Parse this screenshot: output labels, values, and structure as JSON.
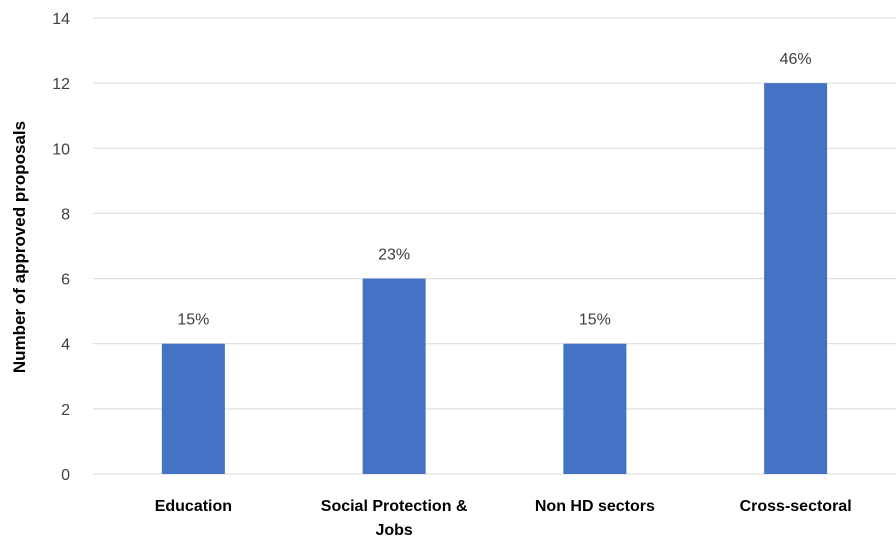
{
  "chart_data": {
    "type": "bar",
    "categories": [
      "Education",
      "Social Protection & Jobs",
      "Non HD sectors",
      "Cross-sectoral"
    ],
    "category_lines": [
      [
        "Education"
      ],
      [
        "Social Protection &",
        "Jobs"
      ],
      [
        "Non HD sectors"
      ],
      [
        "Cross-sectoral"
      ]
    ],
    "values": [
      4,
      6,
      4,
      12
    ],
    "data_labels": [
      "15%",
      "23%",
      "15%",
      "46%"
    ],
    "ylabel": "Number of approved proposals",
    "xlabel": "",
    "ylim": [
      0,
      14
    ],
    "yticks": [
      0,
      2,
      4,
      6,
      8,
      10,
      12,
      14
    ],
    "grid": true,
    "colors": {
      "bar": "#4472C4",
      "grid": "#d9d9d9",
      "text": "#404040"
    }
  }
}
